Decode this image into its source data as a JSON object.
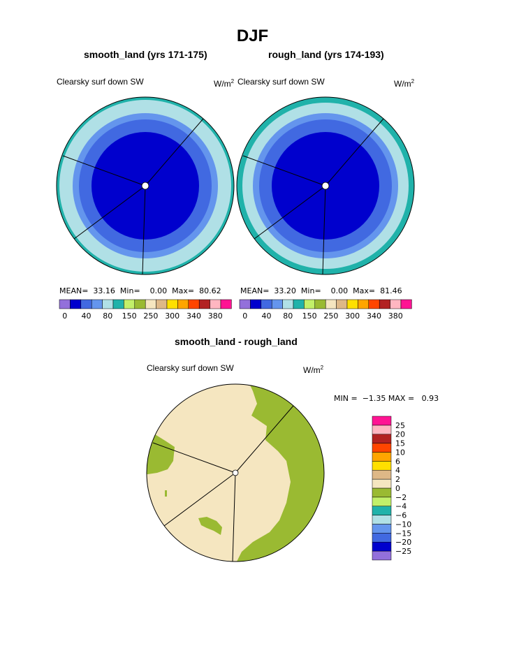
{
  "season_title": "DJF",
  "panels": [
    {
      "title": "smooth_land (yrs 171-175)",
      "variable": "Clearsky surf down SW",
      "units_base": "W/m",
      "units_exp": "2",
      "mean_label": "MEAN=",
      "mean": "33.16",
      "min_label": "Min=",
      "min": "0.00",
      "max_label": "Max=",
      "max": "80.62"
    },
    {
      "title": "rough_land (yrs 174-193)",
      "variable": "Clearsky surf down SW",
      "units_base": "W/m",
      "units_exp": "2",
      "mean_label": "MEAN=",
      "mean": "33.20",
      "min_label": "Min=",
      "min": "0.00",
      "max_label": "Max=",
      "max": "81.46"
    }
  ],
  "diff_panel": {
    "title": "smooth_land - rough_land",
    "variable": "Clearsky surf down SW",
    "units_base": "W/m",
    "units_exp": "2",
    "min_label": "MIN =",
    "min": "−1.35",
    "max_label": "MAX =",
    "max": "0.93"
  },
  "colorbars": {
    "top": {
      "colors": [
        "#9370db",
        "#0000cd",
        "#4169e1",
        "#6495ed",
        "#b0e0e6",
        "#20b2aa",
        "#c2f06a",
        "#9aba32",
        "#f5e6c0",
        "#deb887",
        "#ffe000",
        "#ffa500",
        "#ff4500",
        "#b22222",
        "#ffb6c1",
        "#ff1493"
      ],
      "tick_labels": [
        "0",
        "40",
        "80",
        "150",
        "250",
        "300",
        "340",
        "380"
      ]
    },
    "diff": {
      "colors_bottom_to_top": [
        "#9370db",
        "#0000cd",
        "#4169e1",
        "#6495ed",
        "#b0e0e6",
        "#20b2aa",
        "#c2f06a",
        "#9aba32",
        "#f5e6c0",
        "#deb887",
        "#ffe000",
        "#ffa500",
        "#ff4500",
        "#b22222",
        "#ffb6c1",
        "#ff1493"
      ],
      "tick_labels_top_to_bottom": [
        "25",
        "20",
        "15",
        "10",
        "6",
        "4",
        "2",
        "0",
        "−2",
        "−4",
        "−6",
        "−10",
        "−15",
        "−20",
        "−25"
      ]
    }
  },
  "chart_data": [
    {
      "type": "heatmap",
      "projection": "polar stereographic",
      "title": "smooth_land (yrs 171-175)",
      "variable": "Clearsky surf down SW",
      "units": "W/m2",
      "mean": 33.16,
      "min": 0.0,
      "max": 80.62,
      "levels": [
        0,
        40,
        80,
        150,
        250,
        300,
        340,
        380
      ],
      "rings_outer_to_inner_colors": [
        "#20b2aa",
        "#b0e0e6",
        "#6495ed",
        "#4169e1",
        "#0000cd"
      ],
      "grid": true
    },
    {
      "type": "heatmap",
      "projection": "polar stereographic",
      "title": "rough_land (yrs 174-193)",
      "variable": "Clearsky surf down SW",
      "units": "W/m2",
      "mean": 33.2,
      "min": 0.0,
      "max": 81.46,
      "levels": [
        0,
        40,
        80,
        150,
        250,
        300,
        340,
        380
      ],
      "rings_outer_to_inner_colors": [
        "#20b2aa",
        "#b0e0e6",
        "#6495ed",
        "#4169e1",
        "#0000cd"
      ],
      "grid": true
    },
    {
      "type": "heatmap",
      "projection": "polar stereographic",
      "title": "smooth_land - rough_land",
      "variable": "Clearsky surf down SW",
      "units": "W/m2",
      "min": -1.35,
      "max": 0.93,
      "levels": [
        -25,
        -20,
        -15,
        -10,
        -6,
        -4,
        -2,
        0,
        2,
        4,
        6,
        10,
        15,
        20,
        25
      ],
      "regions": [
        {
          "range": "-2 to 0",
          "color": "#9aba32"
        },
        {
          "range": "0 to 2",
          "color": "#f5e6c0"
        }
      ],
      "grid": true
    }
  ]
}
